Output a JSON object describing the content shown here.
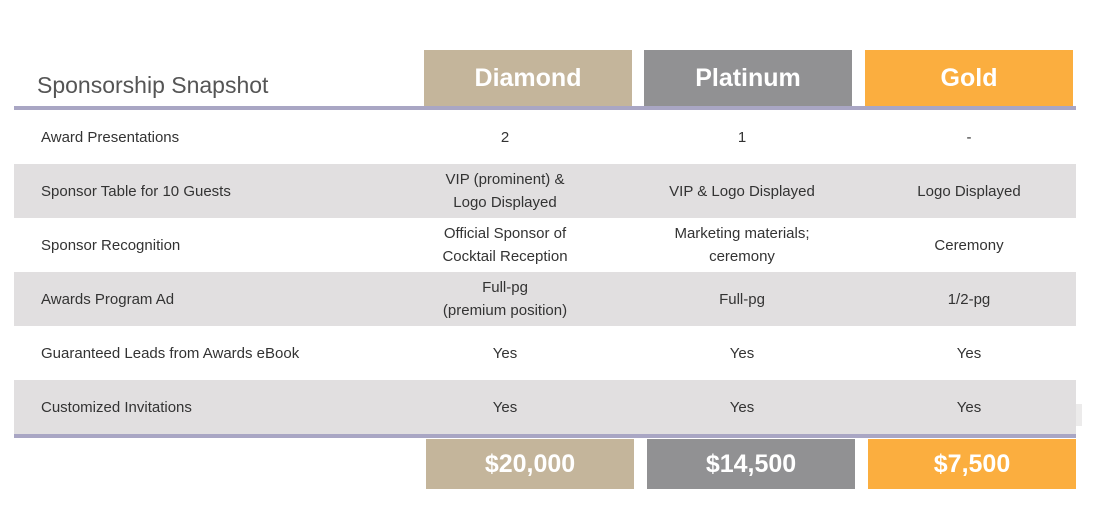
{
  "title": "Sponsorship Snapshot",
  "tiers": [
    {
      "name": "Diamond",
      "price": "$20,000",
      "color": "#c4b59b"
    },
    {
      "name": "Platinum",
      "price": "$14,500",
      "color": "#919193"
    },
    {
      "name": "Gold",
      "price": "$7,500",
      "color": "#fbae3f"
    }
  ],
  "rows": [
    {
      "label": "Award Presentations",
      "values": [
        "2",
        "1",
        "-"
      ]
    },
    {
      "label": "Sponsor Table for 10 Guests",
      "values": [
        "VIP (prominent) &\nLogo Displayed",
        "VIP & Logo Displayed",
        "Logo Displayed"
      ]
    },
    {
      "label": "Sponsor Recognition",
      "values": [
        "Official Sponsor of\nCocktail Reception",
        "Marketing materials;\nceremony",
        "Ceremony"
      ]
    },
    {
      "label": "Awards Program Ad",
      "values": [
        "Full-pg\n(premium position)",
        "Full-pg",
        "1/2-pg"
      ]
    },
    {
      "label": "Guaranteed Leads from Awards eBook",
      "values": [
        "Yes",
        "Yes",
        "Yes"
      ]
    },
    {
      "label": "Customized Invitations",
      "values": [
        "Yes",
        "Yes",
        "Yes"
      ]
    }
  ],
  "colors": {
    "rule": "#a9a6c4",
    "row_shade": "#e1dfe0"
  }
}
